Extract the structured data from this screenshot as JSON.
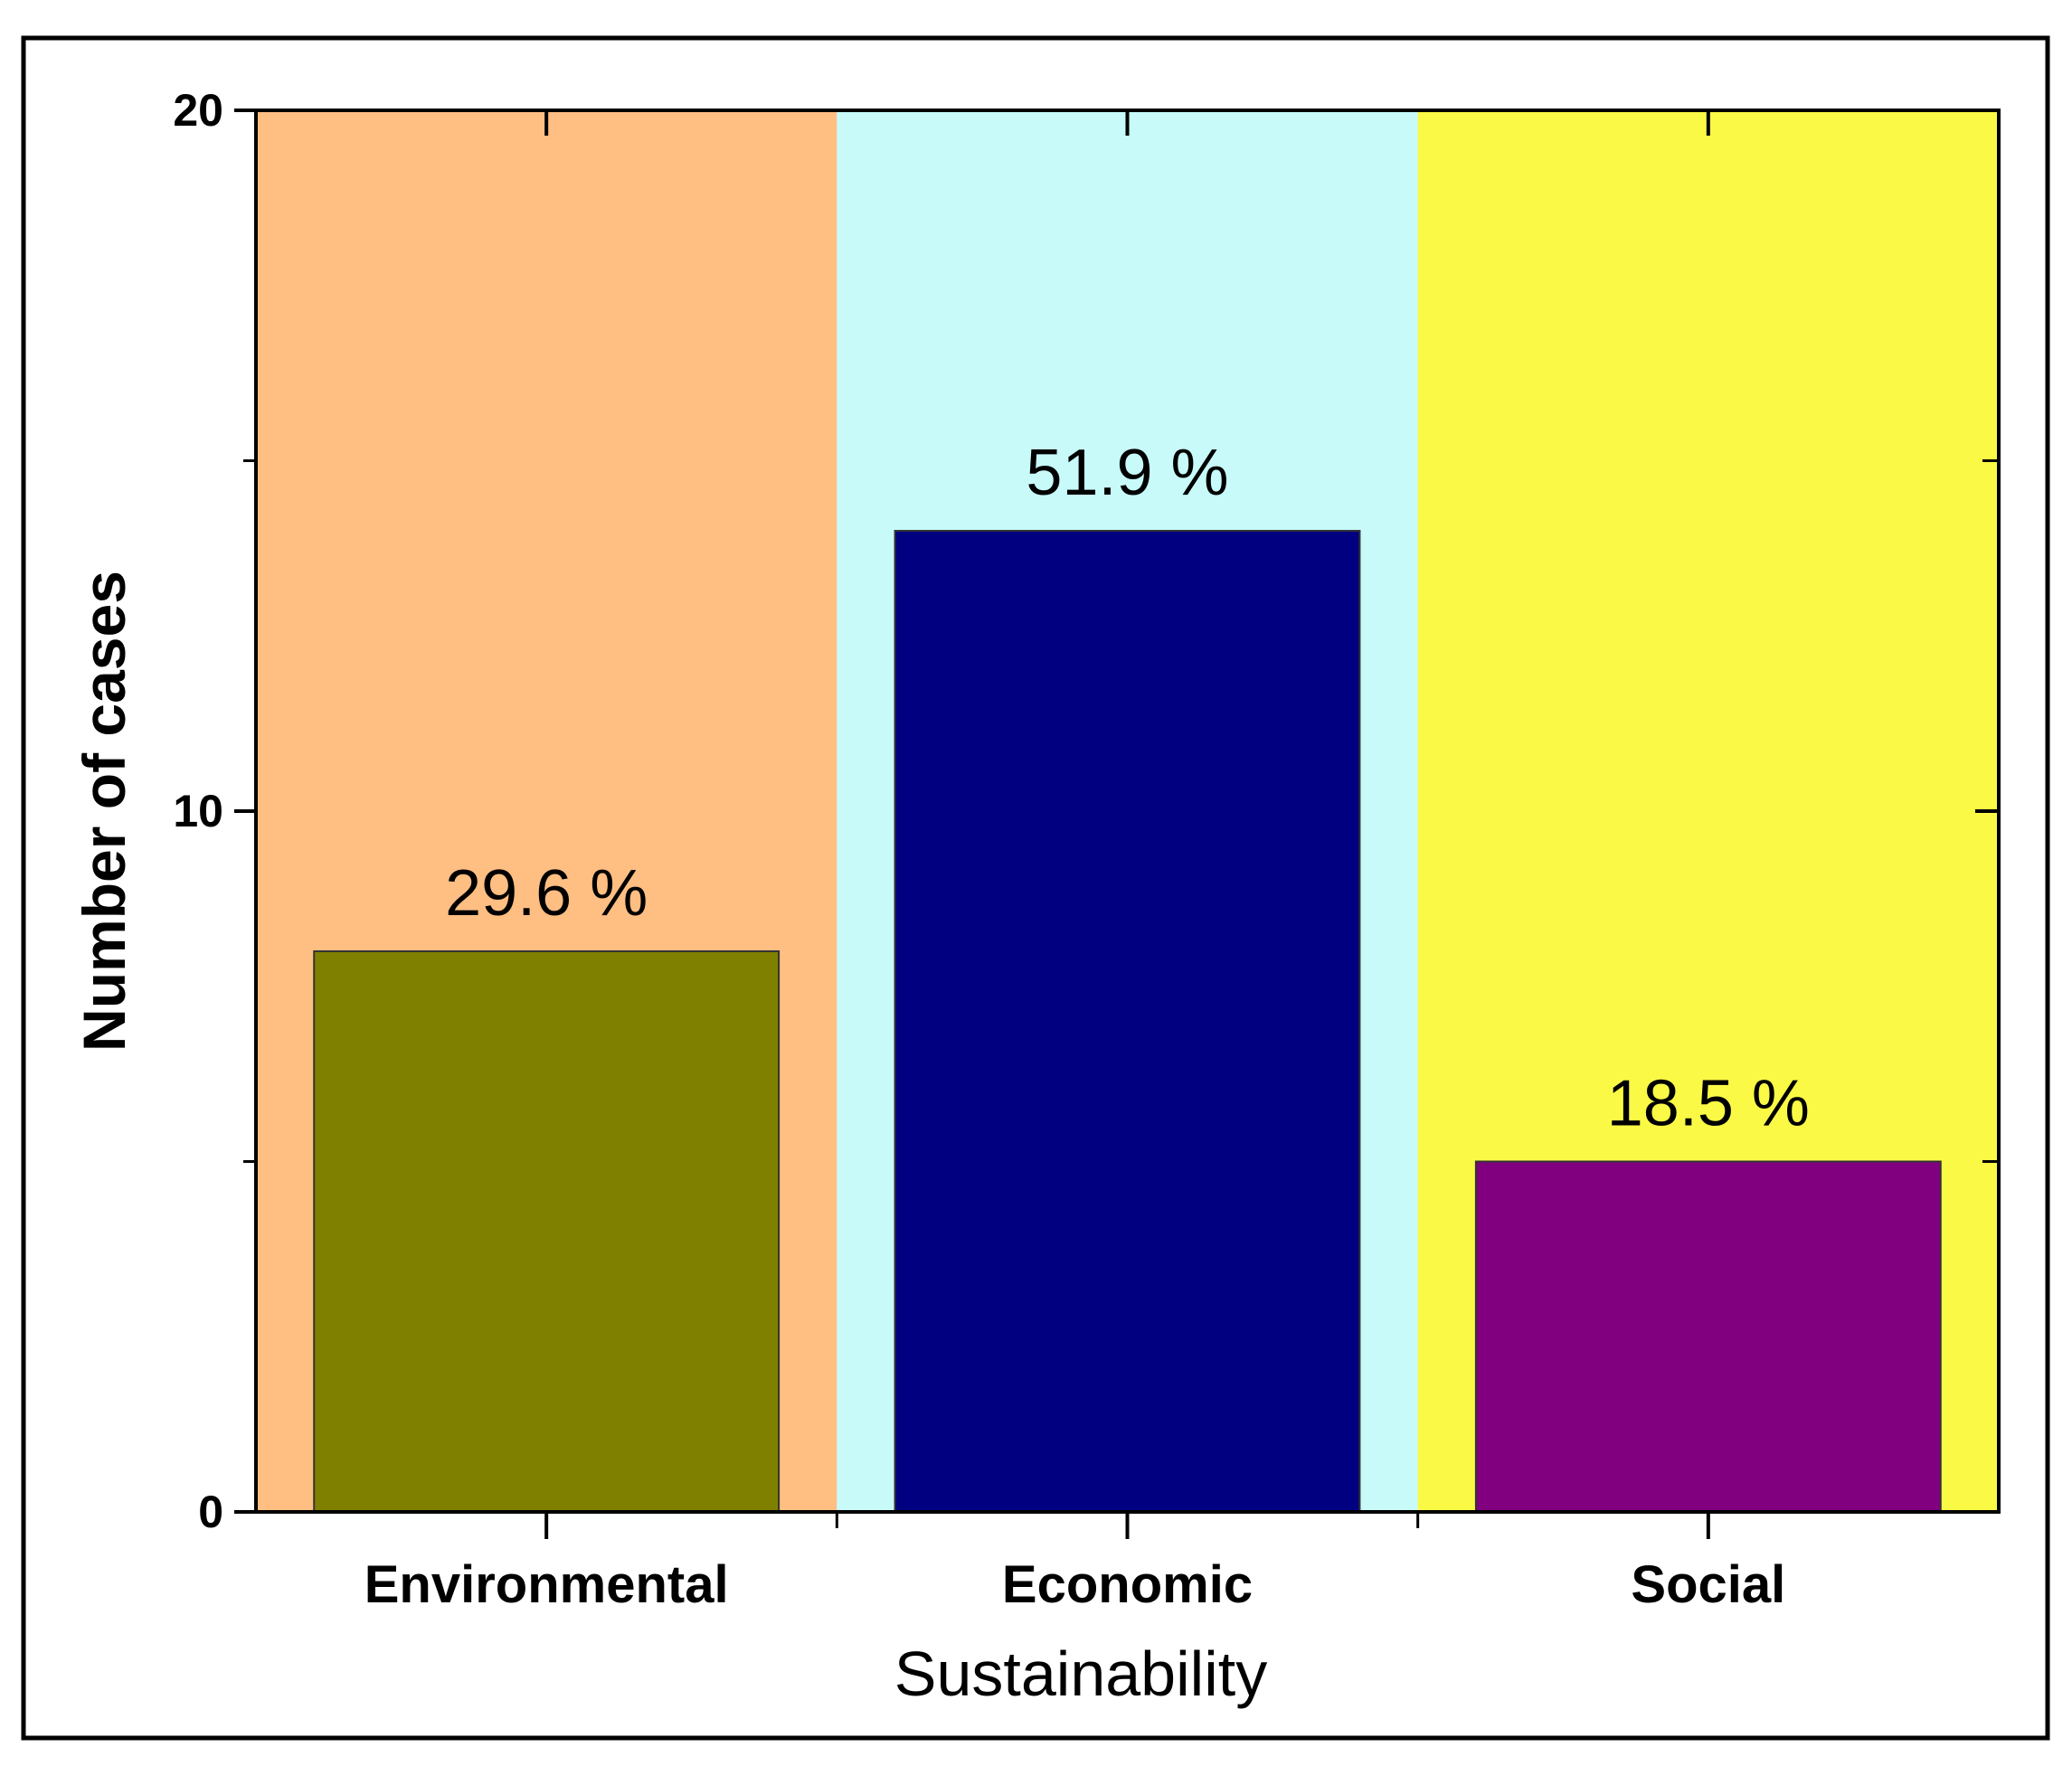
{
  "chart_data": {
    "type": "bar",
    "title": "",
    "xlabel": "Sustainability",
    "ylabel": "Number of cases",
    "ylim": [
      0,
      20
    ],
    "yticks": [
      0,
      10,
      20
    ],
    "categories": [
      "Environmental",
      "Economic",
      "Social"
    ],
    "values": [
      8,
      14,
      5
    ],
    "data_labels": [
      "29.6 %",
      "51.9 %",
      "18.5 %"
    ],
    "bar_colors": [
      "#808000",
      "#000080",
      "#800080"
    ],
    "background_colors": [
      "#FFBE82",
      "#C8FAFA",
      "#FAFA46"
    ],
    "grid": false,
    "legend": "none"
  }
}
